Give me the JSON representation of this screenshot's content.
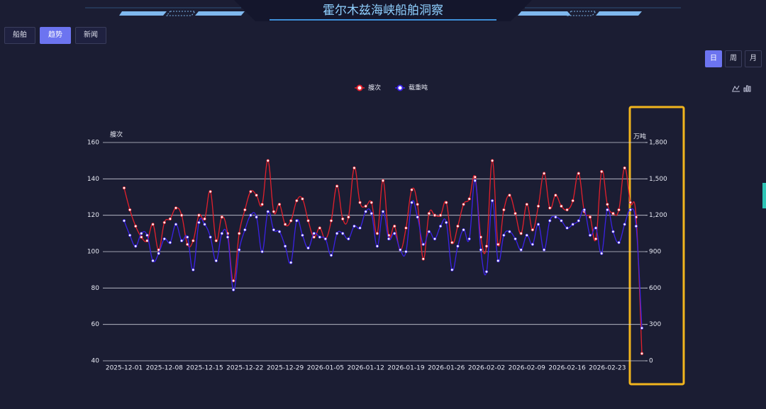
{
  "header": {
    "title": "霍尔木兹海峡船舶洞察",
    "tabs": [
      "船舶",
      "趋势",
      "新闻"
    ],
    "period_buttons": [
      "日",
      "周",
      "月"
    ]
  },
  "chart_data": {
    "type": "line",
    "categories": [
      "2025-12-01",
      null,
      null,
      null,
      null,
      null,
      null,
      "2025-12-08",
      null,
      null,
      null,
      null,
      null,
      null,
      "2025-12-15",
      null,
      null,
      null,
      null,
      null,
      null,
      "2025-12-22",
      null,
      null,
      null,
      null,
      null,
      null,
      "2025-12-29",
      null,
      null,
      null,
      null,
      null,
      null,
      "2026-01-05",
      null,
      null,
      null,
      null,
      null,
      null,
      "2026-01-12",
      null,
      null,
      null,
      null,
      null,
      null,
      "2026-01-19",
      null,
      null,
      null,
      null,
      null,
      null,
      "2026-01-26",
      null,
      null,
      null,
      null,
      null,
      null,
      "2026-02-02",
      null,
      null,
      null,
      null,
      null,
      null,
      "2026-02-09",
      null,
      null,
      null,
      null,
      null,
      null,
      "2026-02-16",
      null,
      null,
      null,
      null,
      null,
      null,
      "2026-02-23",
      null,
      null,
      null,
      null,
      null,
      null
    ],
    "series": [
      {
        "name": "艘次",
        "color": "#e3202c",
        "axis": "y",
        "values": [
          135,
          123,
          114,
          108,
          106,
          115,
          101,
          116,
          118,
          124,
          120,
          104,
          106,
          120,
          118,
          133,
          106,
          119,
          110,
          84,
          110,
          123,
          133,
          131,
          126,
          150,
          122,
          126,
          115,
          117,
          128,
          129,
          117,
          108,
          113,
          107,
          117,
          136,
          118,
          119,
          146,
          127,
          125,
          127,
          110,
          139,
          109,
          114,
          101,
          113,
          134,
          126,
          96,
          121,
          120,
          120,
          127,
          105,
          114,
          126,
          129,
          141,
          108,
          103,
          150,
          104,
          123,
          131,
          121,
          110,
          126,
          112,
          125,
          143,
          124,
          131,
          125,
          123,
          128,
          143,
          122,
          119,
          107,
          144,
          126,
          121,
          123,
          146,
          127,
          119,
          44
        ]
      },
      {
        "name": "载重吨",
        "color": "#3b22e6",
        "axis": "y2",
        "values": [
          1155,
          1035,
          945,
          1050,
          1035,
          825,
          885,
          1005,
          975,
          1125,
          990,
          1020,
          750,
          1140,
          1125,
          1020,
          825,
          1050,
          1020,
          585,
          915,
          1080,
          1200,
          1185,
          900,
          1230,
          1080,
          1065,
          945,
          810,
          1155,
          1035,
          930,
          1050,
          1020,
          1005,
          870,
          1050,
          1050,
          1005,
          1110,
          1095,
          1230,
          1215,
          945,
          1230,
          1005,
          1050,
          915,
          900,
          1305,
          1185,
          960,
          1065,
          1005,
          1110,
          1140,
          750,
          945,
          1080,
          1005,
          1485,
          915,
          735,
          1320,
          825,
          1035,
          1065,
          1005,
          915,
          1035,
          960,
          1125,
          915,
          1155,
          1185,
          1155,
          1095,
          1125,
          1155,
          1245,
          1035,
          1095,
          885,
          1245,
          1065,
          975,
          1125,
          1245,
          1110,
          270
        ]
      }
    ],
    "ylabel": "艘次",
    "y2label": "万吨",
    "ylim": [
      40,
      160
    ],
    "yticks": [
      40,
      60,
      80,
      100,
      120,
      140,
      160
    ],
    "y2lim": [
      0,
      1800
    ],
    "y2ticks": [
      0,
      300,
      600,
      900,
      {
        "value": 1200,
        "label": "1,200"
      },
      {
        "value": 1500,
        "label": "1,500"
      },
      {
        "value": 1800,
        "label": "1,800"
      }
    ],
    "grid": true,
    "legend": "top"
  }
}
